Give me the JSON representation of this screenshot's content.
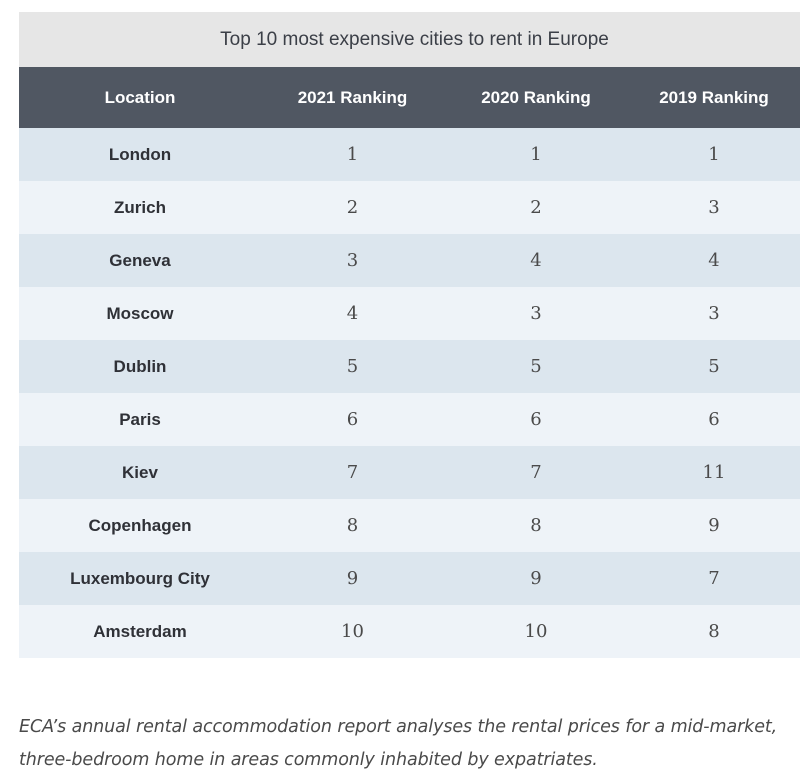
{
  "table": {
    "caption": "Top 10 most expensive cities to rent in Europe",
    "headers": [
      "Location",
      "2021 Ranking",
      "2020 Ranking",
      "2019 Ranking"
    ],
    "rows": [
      {
        "location": "London",
        "r2021": "1",
        "r2020": "1",
        "r2019": "1"
      },
      {
        "location": "Zurich",
        "r2021": "2",
        "r2020": "2",
        "r2019": "3"
      },
      {
        "location": "Geneva",
        "r2021": "3",
        "r2020": "4",
        "r2019": "4"
      },
      {
        "location": "Moscow",
        "r2021": "4",
        "r2020": "3",
        "r2019": "3"
      },
      {
        "location": "Dublin",
        "r2021": "5",
        "r2020": "5",
        "r2019": "5"
      },
      {
        "location": "Paris",
        "r2021": "6",
        "r2020": "6",
        "r2019": "6"
      },
      {
        "location": "Kiev",
        "r2021": "7",
        "r2020": "7",
        "r2019": "11"
      },
      {
        "location": "Copenhagen",
        "r2021": "8",
        "r2020": "8",
        "r2019": "9"
      },
      {
        "location": "Luxembourg City",
        "r2021": "9",
        "r2020": "9",
        "r2019": "7"
      },
      {
        "location": "Amsterdam",
        "r2021": "10",
        "r2020": "10",
        "r2019": "8"
      }
    ]
  },
  "note": "ECA’s annual rental accommodation report analyses the rental prices for a mid-market, three-bedroom home in areas commonly inhabited by expatriates.",
  "colors": {
    "header_bg": "#505762",
    "caption_bg": "#e6e6e6",
    "row_dark": "#dce6ee",
    "row_light": "#eef3f8"
  }
}
